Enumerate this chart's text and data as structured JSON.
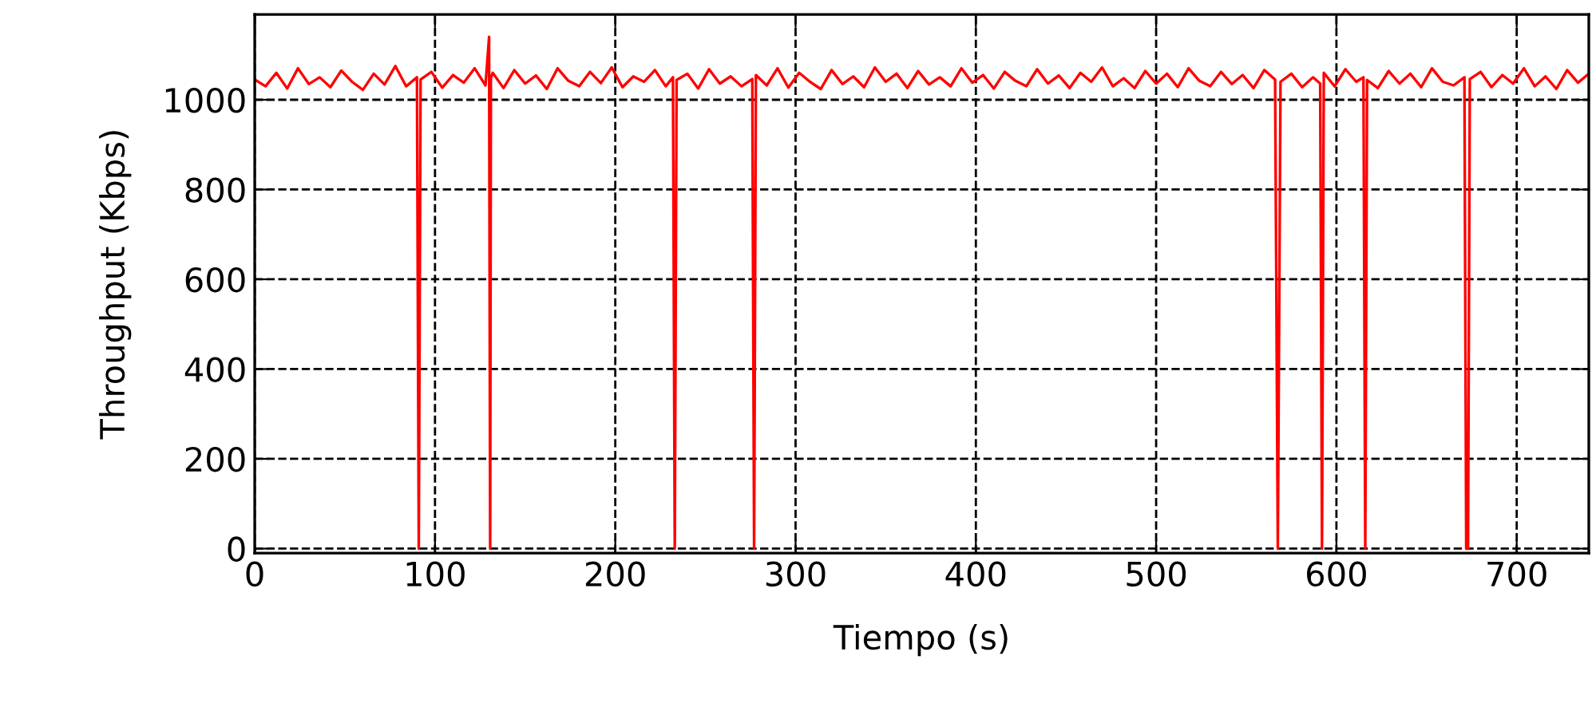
{
  "chart_data": {
    "type": "line",
    "xlabel": "Tiempo (s)",
    "ylabel": "Throughput (Kbps)",
    "xlim": [
      0,
      740
    ],
    "ylim": [
      -10,
      1190
    ],
    "xticks": [
      0,
      100,
      200,
      300,
      400,
      500,
      600,
      700
    ],
    "yticks": [
      0,
      200,
      400,
      600,
      800,
      1000
    ],
    "grid": true,
    "line_style": "solid",
    "marker": "none",
    "series": [
      {
        "color": "#ff0000",
        "x": [
          0,
          6,
          12,
          18,
          24,
          30,
          36,
          42,
          48,
          54,
          60,
          66,
          72,
          78,
          84,
          90,
          91,
          92,
          98,
          104,
          110,
          116,
          122,
          128,
          130,
          130.6,
          131,
          132,
          138,
          144,
          150,
          156,
          162,
          168,
          174,
          180,
          186,
          192,
          198,
          204,
          210,
          216,
          222,
          228,
          232,
          233,
          234,
          240,
          246,
          252,
          258,
          264,
          270,
          276,
          277,
          278,
          284,
          290,
          296,
          302,
          308,
          314,
          320,
          326,
          332,
          338,
          344,
          350,
          356,
          362,
          368,
          374,
          380,
          386,
          392,
          398,
          404,
          410,
          416,
          422,
          428,
          434,
          440,
          446,
          452,
          458,
          464,
          470,
          476,
          482,
          488,
          494,
          500,
          506,
          512,
          518,
          524,
          530,
          536,
          542,
          548,
          554,
          560,
          566,
          567.5,
          569,
          575,
          581,
          587,
          591,
          592,
          593,
          599,
          605,
          611,
          615,
          616,
          617,
          623,
          629,
          635,
          641,
          647,
          653,
          659,
          665,
          671,
          672,
          673,
          674,
          680,
          686,
          692,
          698,
          704,
          710,
          716,
          722,
          728,
          734,
          740
        ],
        "values": [
          1045,
          1030,
          1060,
          1025,
          1070,
          1035,
          1050,
          1028,
          1065,
          1040,
          1022,
          1058,
          1034,
          1075,
          1030,
          1050,
          0,
          1045,
          1062,
          1027,
          1055,
          1038,
          1070,
          1032,
          1140,
          0,
          1048,
          1060,
          1026,
          1066,
          1036,
          1054,
          1024,
          1070,
          1042,
          1030,
          1062,
          1037,
          1072,
          1028,
          1052,
          1040,
          1066,
          1030,
          1050,
          0,
          1044,
          1058,
          1025,
          1068,
          1036,
          1052,
          1030,
          1046,
          0,
          1055,
          1032,
          1070,
          1027,
          1060,
          1040,
          1024,
          1066,
          1035,
          1052,
          1028,
          1072,
          1040,
          1058,
          1026,
          1064,
          1034,
          1050,
          1030,
          1070,
          1038,
          1055,
          1025,
          1062,
          1042,
          1030,
          1068,
          1036,
          1054,
          1026,
          1060,
          1040,
          1072,
          1030,
          1048,
          1026,
          1064,
          1036,
          1058,
          1028,
          1070,
          1042,
          1030,
          1062,
          1035,
          1055,
          1026,
          1066,
          1045,
          0,
          1040,
          1058,
          1028,
          1050,
          1036,
          0,
          1060,
          1030,
          1068,
          1040,
          1050,
          0,
          1044,
          1026,
          1064,
          1036,
          1058,
          1028,
          1070,
          1040,
          1032,
          1050,
          0,
          0,
          1046,
          1062,
          1028,
          1055,
          1036,
          1070,
          1030,
          1052,
          1024,
          1066,
          1038,
          1058
        ]
      }
    ]
  }
}
